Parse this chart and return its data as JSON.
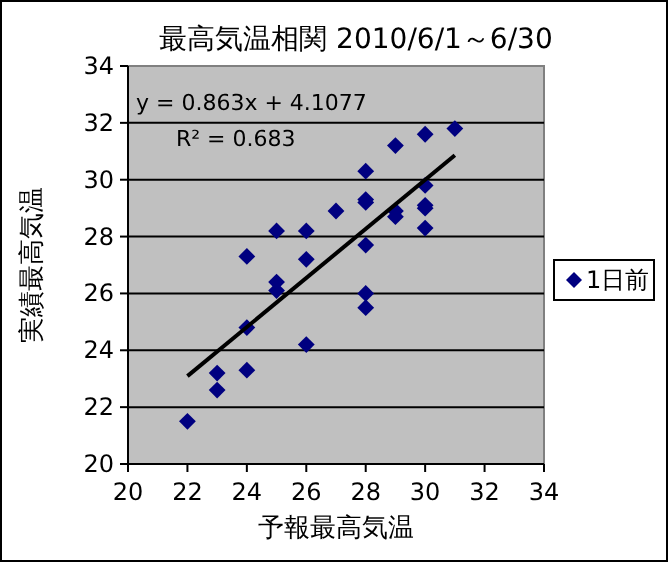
{
  "chart_data": {
    "type": "scatter",
    "title": "最高気温相関 2010/6/1～6/30",
    "xlabel": "予報最高気温",
    "ylabel": "実績最高気温",
    "xlim": [
      20,
      34
    ],
    "ylim": [
      20,
      34
    ],
    "xticks": [
      20,
      22,
      24,
      26,
      28,
      30,
      32,
      34
    ],
    "yticks": [
      20,
      22,
      24,
      26,
      28,
      30,
      32,
      34
    ],
    "grid": "y",
    "legend": "right",
    "marker": "diamond",
    "series": [
      {
        "name": "1日前",
        "color": "#000080",
        "x": [
          22,
          23,
          23,
          24,
          24,
          24,
          25,
          25,
          25,
          26,
          26,
          26,
          27,
          28,
          28,
          28,
          28,
          29,
          29,
          30,
          30,
          30,
          30,
          28,
          28,
          29,
          30,
          31
        ],
        "values": [
          21.5,
          23.2,
          22.6,
          27.3,
          24.8,
          23.3,
          28.2,
          26.4,
          26.1,
          28.2,
          27.2,
          24.2,
          28.9,
          29.2,
          27.7,
          26.0,
          25.5,
          28.9,
          28.7,
          29.8,
          29.1,
          29.0,
          28.3,
          30.3,
          29.3,
          31.2,
          31.6,
          31.8
        ]
      },
      {
        "type": "line",
        "marker": "none",
        "color": "#000000",
        "x": [
          22,
          31
        ],
        "values": [
          23.09,
          30.86
        ]
      }
    ],
    "annotations": [
      "y = 0.863x + 4.1077",
      "R² = 0.683"
    ]
  }
}
